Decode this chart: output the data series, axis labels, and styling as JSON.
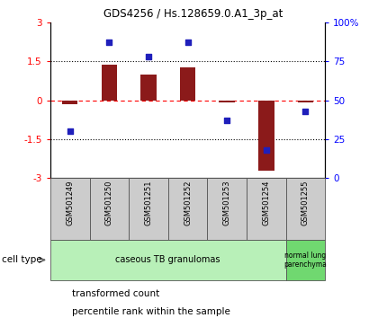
{
  "title": "GDS4256 / Hs.128659.0.A1_3p_at",
  "samples": [
    "GSM501249",
    "GSM501250",
    "GSM501251",
    "GSM501252",
    "GSM501253",
    "GSM501254",
    "GSM501255"
  ],
  "transformed_count": [
    -0.15,
    1.35,
    1.0,
    1.25,
    -0.1,
    -2.7,
    -0.08
  ],
  "percentile_rank": [
    30,
    87,
    78,
    87,
    37,
    18,
    43
  ],
  "ylim_left": [
    -3,
    3
  ],
  "ylim_right": [
    0,
    100
  ],
  "yticks_left": [
    -3,
    -1.5,
    0,
    1.5,
    3
  ],
  "yticks_right": [
    0,
    25,
    50,
    75,
    100
  ],
  "bar_color": "#8B1A1A",
  "dot_color": "#1F1FBB",
  "cell_types": [
    {
      "label": "caseous TB granulomas",
      "span": [
        0,
        5
      ],
      "color": "#b8f0b8"
    },
    {
      "label": "normal lung\nparenchyma",
      "span": [
        6,
        6
      ],
      "color": "#70d870"
    }
  ],
  "legend_items": [
    {
      "color": "#CC2200",
      "label": "transformed count"
    },
    {
      "color": "#1F1FBB",
      "label": "percentile rank within the sample"
    }
  ],
  "tick_label_area_color": "#cccccc",
  "cell_type_label": "cell type"
}
